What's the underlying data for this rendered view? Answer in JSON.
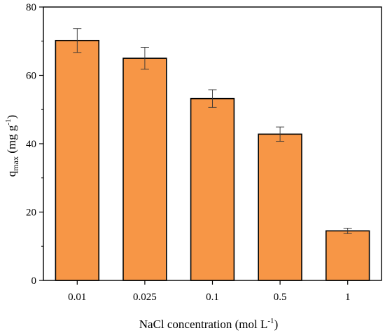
{
  "chart_data": {
    "type": "bar",
    "categories": [
      "0.01",
      "0.025",
      "0.1",
      "0.5",
      "1"
    ],
    "values": [
      70.2,
      65.0,
      53.2,
      42.8,
      14.5
    ],
    "errors": [
      3.5,
      3.2,
      2.6,
      2.1,
      0.8
    ],
    "ylim": [
      0,
      80
    ],
    "yticks": [
      "0",
      "20",
      "40",
      "60",
      "80"
    ],
    "xlabel": {
      "text": "NaCl concentration (mol L",
      "sup": "-1",
      "tail": ")"
    },
    "ylabel": {
      "q": "q",
      "sub": "max",
      "unit": " (mg g",
      "sup": "-1",
      "tail": ")"
    },
    "bar_color": "#F79646",
    "bar_edge": "#000000",
    "grid": false,
    "legend": "none"
  }
}
